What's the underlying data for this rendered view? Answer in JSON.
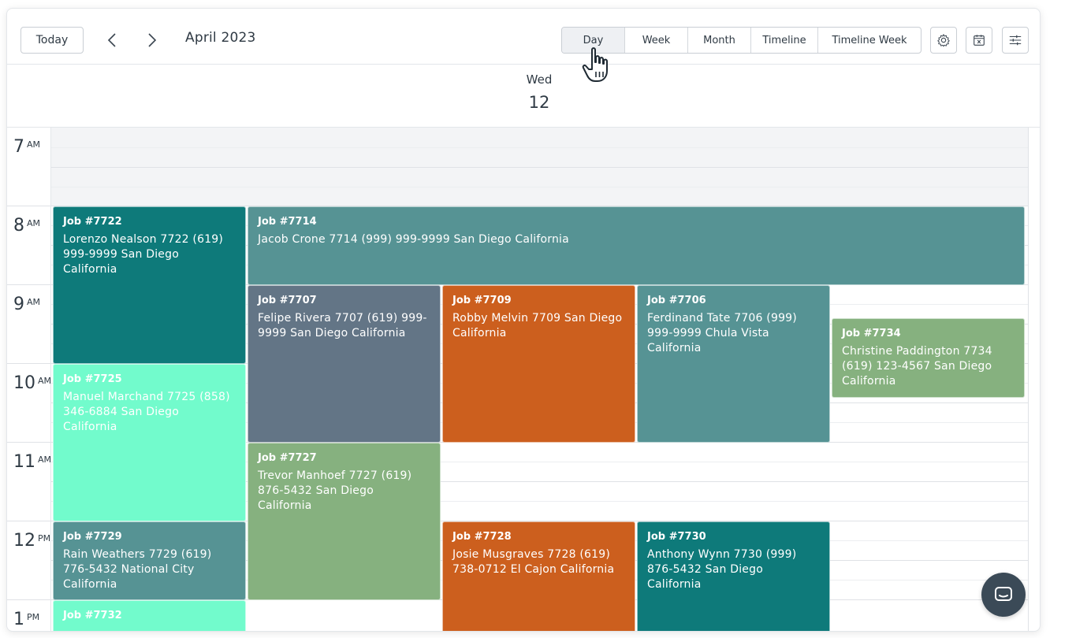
{
  "toolbar": {
    "today_label": "Today",
    "title": "April 2023",
    "views": [
      {
        "label": "Day",
        "active": true
      },
      {
        "label": "Week",
        "active": false
      },
      {
        "label": "Month",
        "active": false
      },
      {
        "label": "Timeline",
        "active": false
      },
      {
        "label": "Timeline Week",
        "active": false
      }
    ],
    "icons": [
      "gear-icon",
      "calendar-clear-icon",
      "sliders-icon"
    ]
  },
  "day_header": {
    "weekday": "Wed",
    "day_number": "12"
  },
  "time_gutter": [
    {
      "hour": "7",
      "suffix": "AM"
    },
    {
      "hour": "8",
      "suffix": "AM"
    },
    {
      "hour": "9",
      "suffix": "AM"
    },
    {
      "hour": "10",
      "suffix": "AM"
    },
    {
      "hour": "11",
      "suffix": "AM"
    },
    {
      "hour": "12",
      "suffix": "PM"
    },
    {
      "hour": "1",
      "suffix": "PM"
    }
  ],
  "events": [
    {
      "title": "Job #7722",
      "body": "Lorenzo Nealson 7722 (619) 999-9999 San Diego California",
      "color": "#0e7a7a"
    },
    {
      "title": "Job #7714",
      "body": "Jacob Crone 7714 (999) 999-9999 San Diego California",
      "color": "#569394"
    },
    {
      "title": "Job #7707",
      "body": "Felipe Rivera 7707 (619) 999-9999 San Diego California",
      "color": "#637586"
    },
    {
      "title": "Job #7709",
      "body": "Robby Melvin 7709 San Diego California",
      "color": "#cc5f1e"
    },
    {
      "title": "Job #7706",
      "body": "Ferdinand Tate 7706 (999) 999-9999 Chula Vista California",
      "color": "#569394"
    },
    {
      "title": "Job #7734",
      "body": "Christine Paddington 7734 (619) 123-4567 San Diego California",
      "color": "#86b17f"
    },
    {
      "title": "Job #7725",
      "body": "Manuel Marchand 7725 (858) 346-6884 San Diego California",
      "color": "#72fbcc"
    },
    {
      "title": "Job #7727",
      "body": "Trevor Manhoef 7727 (619) 876-5432 San Diego California",
      "color": "#86b17f"
    },
    {
      "title": "Job #7729",
      "body": "Rain Weathers 7729 (619) 776-5432 National City California",
      "color": "#569394"
    },
    {
      "title": "Job #7728",
      "body": "Josie Musgraves 7728 (619) 738-0712 El Cajon California",
      "color": "#cc5f1e"
    },
    {
      "title": "Job #7730",
      "body": "Anthony Wynn 7730 (999) 876-5432 San Diego California",
      "color": "#0e7a7a"
    },
    {
      "title": "Job #7732",
      "body": "",
      "color": "#72fbcc"
    }
  ],
  "chat_icon": "chat-bubble-icon"
}
